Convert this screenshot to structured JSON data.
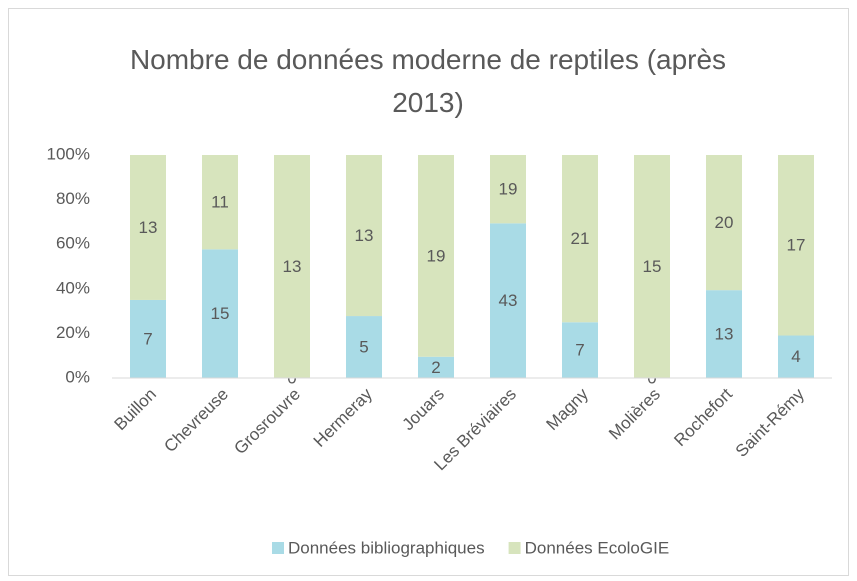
{
  "chart_data": {
    "type": "bar",
    "stacking": "percent",
    "title": "Nombre de données moderne de reptiles (après 2013)",
    "categories": [
      "Buillon",
      "Chevreuse",
      "Grosrouvre",
      "Hermeray",
      "Jouars",
      "Les Bréviaires",
      "Magny",
      "Molières",
      "Rochefort",
      "Saint-Rémy"
    ],
    "series": [
      {
        "name": "Données bibliographiques",
        "color": "#a9dbe6",
        "values": [
          7,
          15,
          0,
          5,
          2,
          43,
          7,
          0,
          13,
          4
        ]
      },
      {
        "name": "Données EcoloGIE",
        "color": "#d7e4bd",
        "values": [
          13,
          11,
          13,
          13,
          19,
          19,
          21,
          15,
          20,
          17
        ]
      }
    ],
    "ylim": [
      0,
      100
    ],
    "yticks": [
      {
        "value": 0,
        "label": "0%"
      },
      {
        "value": 20,
        "label": "20%"
      },
      {
        "value": 40,
        "label": "40%"
      },
      {
        "value": 60,
        "label": "60%"
      },
      {
        "value": 80,
        "label": "80%"
      },
      {
        "value": 100,
        "label": "100%"
      }
    ],
    "legend": "bottom"
  }
}
